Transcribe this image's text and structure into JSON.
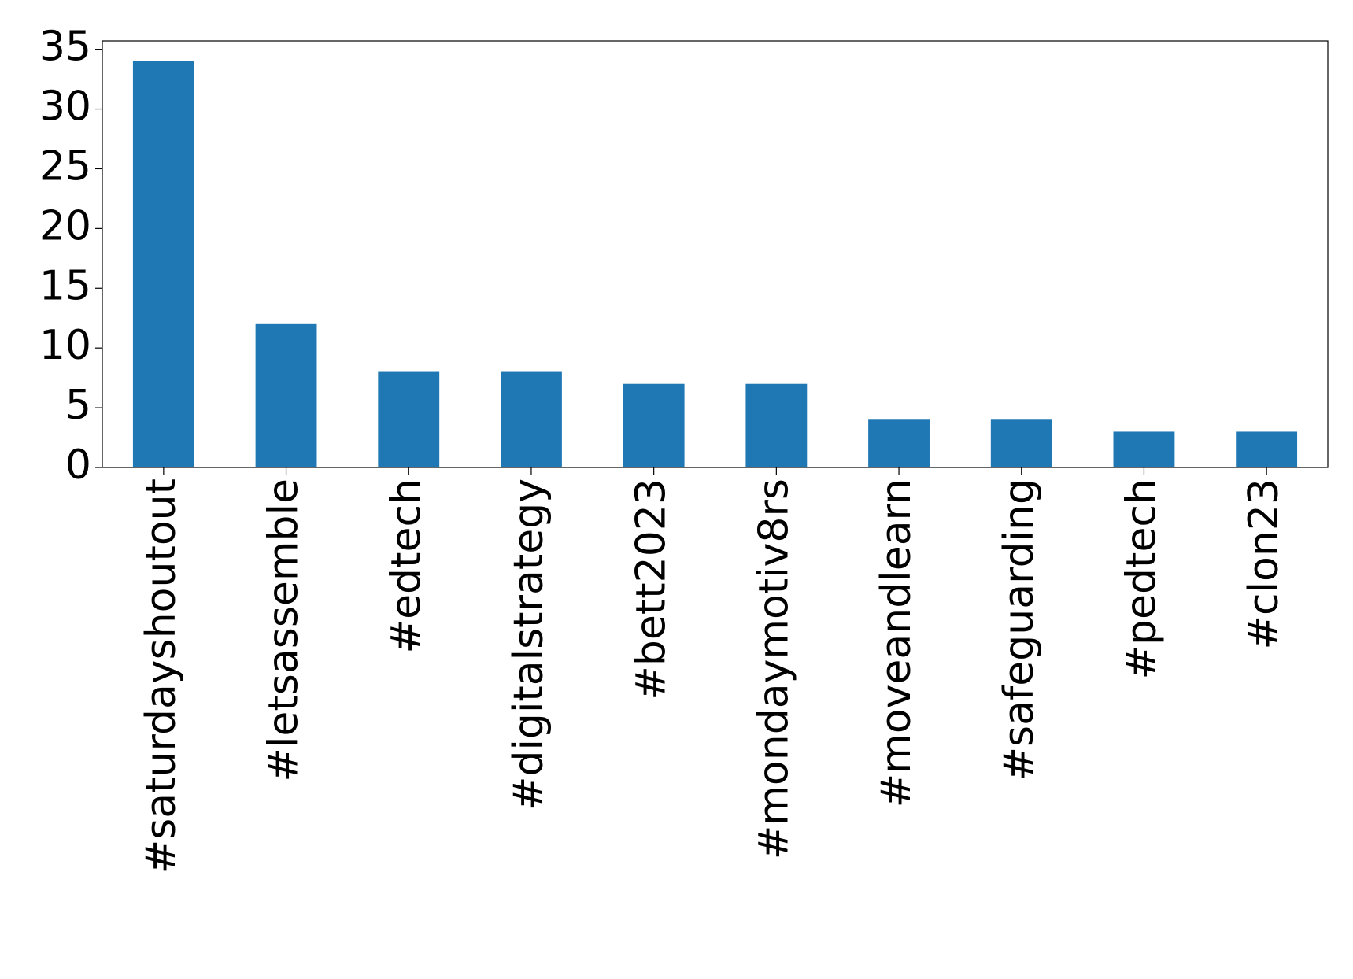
{
  "chart_data": {
    "type": "bar",
    "categories": [
      "#saturdayshoutout",
      "#letsassemble",
      "#edtech",
      "#digitalstrategy",
      "#bett2023",
      "#mondaymotiv8rs",
      "#moveandlearn",
      "#safeguarding",
      "#pedtech",
      "#clon23"
    ],
    "values": [
      34,
      12,
      8,
      8,
      7,
      7,
      4,
      4,
      3,
      3
    ],
    "color": "#1f77b4",
    "ylim": [
      0,
      35.7
    ],
    "yticks": [
      0,
      5,
      10,
      15,
      20,
      25,
      30,
      35
    ],
    "grid": false
  }
}
